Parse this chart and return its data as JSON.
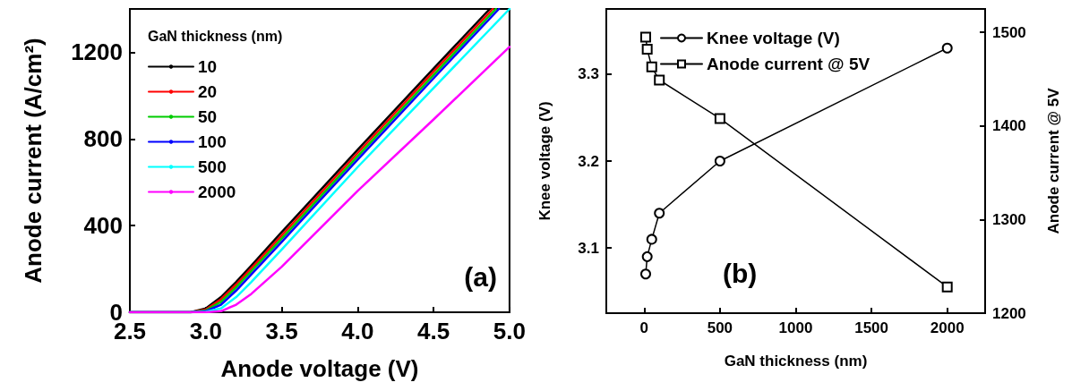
{
  "chart_data": [
    {
      "type": "line",
      "xlabel": "Anode voltage (V)",
      "ylabel": "Anode current (A/cm²)",
      "legend_title": "GaN thickness (nm)",
      "legend": "top left",
      "marker": "none",
      "line_style": "solid",
      "grid": false,
      "xlim": [
        2.5,
        5.0
      ],
      "xticks": [
        2.5,
        {
          "value": 3,
          "label": "3.0"
        },
        3.5,
        {
          "value": 4,
          "label": "4.0"
        },
        4.5,
        {
          "value": 5,
          "label": "5.0"
        }
      ],
      "ylim": [
        0,
        1400
      ],
      "yticks": [
        0,
        400,
        800,
        1200
      ],
      "annotations": [
        "(a)"
      ],
      "series": [
        {
          "name": "10",
          "color": "#000000",
          "x": [
            2.5,
            2.9,
            3.0,
            3.1,
            3.2,
            3.3,
            3.5,
            4.0,
            4.5,
            4.87
          ],
          "values": [
            0,
            0,
            18,
            70,
            140,
            215,
            370,
            750,
            1125,
            1400
          ]
        },
        {
          "name": "20",
          "color": "#ff0000",
          "x": [
            2.5,
            2.9,
            3.0,
            3.1,
            3.2,
            3.3,
            3.5,
            4.0,
            4.5,
            4.89
          ],
          "values": [
            0,
            0,
            12,
            60,
            128,
            203,
            355,
            735,
            1110,
            1400
          ]
        },
        {
          "name": "50",
          "color": "#00cc00",
          "x": [
            2.5,
            2.9,
            3.0,
            3.1,
            3.2,
            3.3,
            3.5,
            4.0,
            4.5,
            4.91
          ],
          "values": [
            0,
            0,
            8,
            48,
            115,
            190,
            340,
            720,
            1095,
            1400
          ]
        },
        {
          "name": "100",
          "color": "#0000ff",
          "x": [
            2.5,
            2.9,
            3.0,
            3.1,
            3.2,
            3.3,
            3.5,
            4.0,
            4.5,
            4.93
          ],
          "values": [
            0,
            0,
            5,
            35,
            100,
            175,
            325,
            705,
            1080,
            1400
          ]
        },
        {
          "name": "500",
          "color": "#00ffff",
          "x": [
            2.5,
            2.9,
            3.0,
            3.1,
            3.2,
            3.3,
            3.5,
            4.0,
            4.5,
            5.0
          ],
          "values": [
            0,
            0,
            2,
            18,
            70,
            140,
            290,
            670,
            1035,
            1400
          ]
        },
        {
          "name": "2000",
          "color": "#ff00ff",
          "x": [
            2.5,
            3.0,
            3.1,
            3.2,
            3.3,
            3.5,
            4.0,
            4.5,
            5.0
          ],
          "values": [
            0,
            0,
            5,
            35,
            85,
            210,
            560,
            890,
            1225
          ]
        }
      ]
    },
    {
      "type": "line",
      "xlabel": "GaN thickness (nm)",
      "ylabel": "Knee voltage (V)",
      "y2label": "Anode current @ 5V",
      "legend": "top",
      "line_style": "solid",
      "grid": false,
      "xlim": [
        -250,
        2250
      ],
      "xticks": [
        0,
        500,
        1000,
        1500,
        2000
      ],
      "ylim": [
        3.025,
        3.375
      ],
      "yticks": [
        3.1,
        3.2,
        3.3
      ],
      "y2lim": [
        1200,
        1525
      ],
      "y2ticks": [
        1200,
        1300,
        1400,
        1500
      ],
      "annotations": [
        "(b)"
      ],
      "series": [
        {
          "name": "Knee voltage (V)",
          "color": "#000000",
          "marker": "circle",
          "x": [
            10,
            20,
            50,
            100,
            500,
            2000
          ],
          "values": [
            3.07,
            3.09,
            3.11,
            3.14,
            3.2,
            3.33
          ]
        },
        {
          "name": "Anode current @ 5V",
          "color": "#000000",
          "marker": "square",
          "axis": "y2",
          "x": [
            10,
            20,
            50,
            100,
            500,
            2000
          ],
          "values": [
            1495,
            1482,
            1463,
            1449,
            1408,
            1228
          ]
        }
      ]
    }
  ]
}
